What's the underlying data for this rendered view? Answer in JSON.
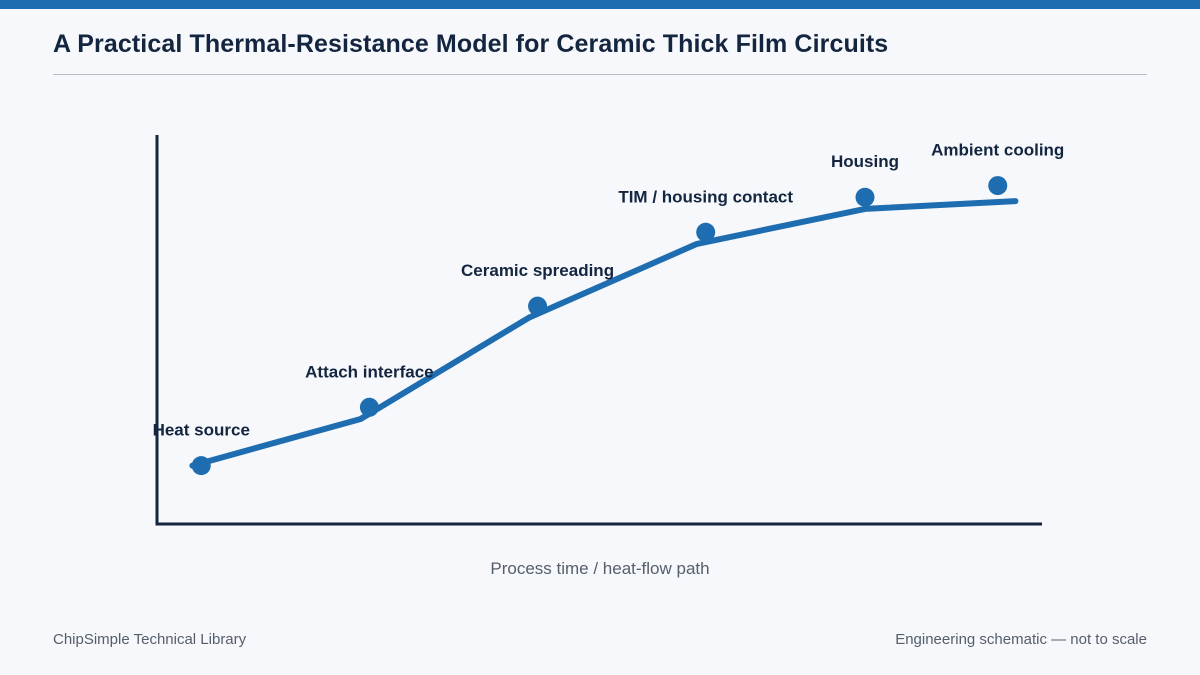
{
  "header": {
    "title": "A Practical Thermal-Resistance Model for Ceramic Thick Film Circuits"
  },
  "footer": {
    "left": "ChipSimple Technical Library",
    "right": "Engineering schematic — not to scale"
  },
  "colors": {
    "accent": "#1f6db1",
    "axis": "#13253f",
    "label": "#13253f",
    "subtle": "#555e6b"
  },
  "chart_data": {
    "type": "line",
    "title": "",
    "xlabel": "Process time / heat-flow path",
    "ylabel": "",
    "xlim": [
      0,
      1
    ],
    "ylim": [
      0,
      1
    ],
    "grid": false,
    "legend": "none",
    "series": [
      {
        "line": [
          [
            0.04,
            0.15
          ],
          [
            0.23,
            0.27
          ],
          [
            0.42,
            0.53
          ],
          [
            0.61,
            0.72
          ],
          [
            0.8,
            0.81
          ],
          [
            0.97,
            0.83
          ]
        ],
        "points": [
          {
            "label": "Heat source",
            "x": 0.05,
            "y": 0.15
          },
          {
            "label": "Attach interface",
            "x": 0.24,
            "y": 0.3
          },
          {
            "label": "Ceramic spreading",
            "x": 0.43,
            "y": 0.56
          },
          {
            "label": "TIM / housing contact",
            "x": 0.62,
            "y": 0.75
          },
          {
            "label": "Housing",
            "x": 0.8,
            "y": 0.84
          },
          {
            "label": "Ambient cooling",
            "x": 0.95,
            "y": 0.87
          }
        ]
      }
    ]
  }
}
